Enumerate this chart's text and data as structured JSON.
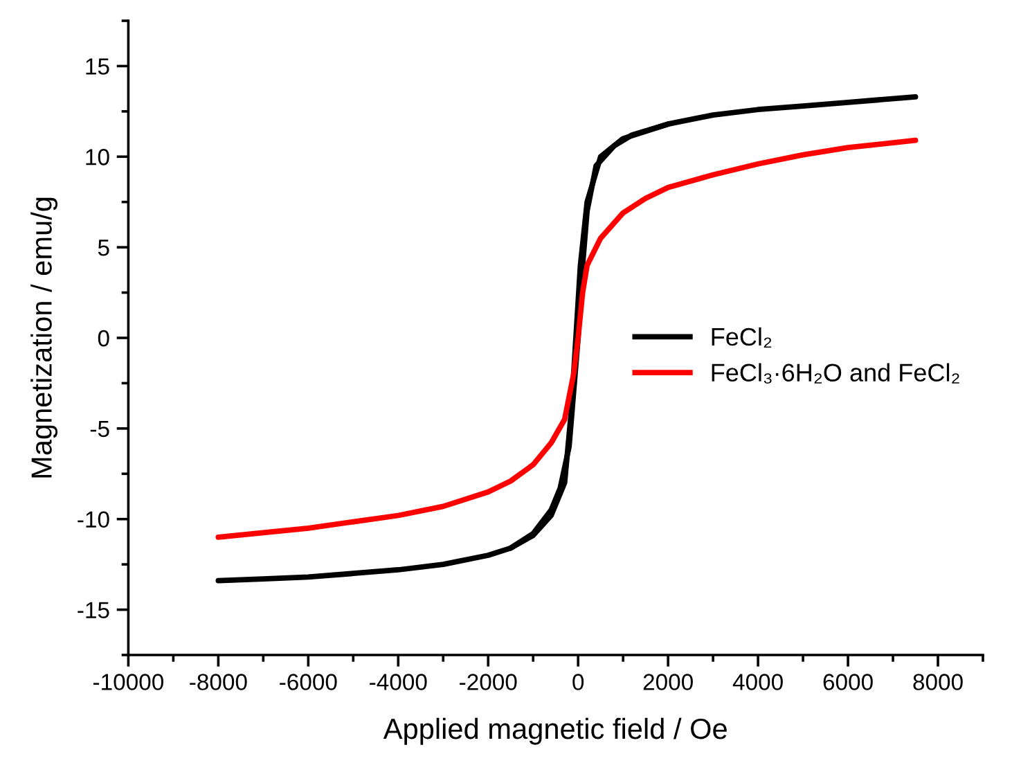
{
  "chart_data": {
    "type": "line",
    "xlabel": "Applied magnetic field / Oe",
    "ylabel": "Magnetization / emu/g",
    "xlim": [
      -10000,
      9000
    ],
    "xticks": [
      -10000,
      -8000,
      -6000,
      -4000,
      -2000,
      0,
      2000,
      4000,
      6000,
      8000
    ],
    "ylim": [
      -17.5,
      17.5
    ],
    "yticks": [
      -15,
      -10,
      -5,
      0,
      5,
      10,
      15
    ],
    "grid": false,
    "legend": "right",
    "marker": "none",
    "line_style": "solid",
    "series": [
      {
        "name": "FeCl₂",
        "color": "#000000",
        "x": [
          -8000,
          -7000,
          -6000,
          -5000,
          -4000,
          -3000,
          -2000,
          -1500,
          -1000,
          -600,
          -400,
          -200,
          -100,
          0,
          100,
          200,
          400,
          800,
          1200,
          2000,
          3000,
          4000,
          5000,
          6000,
          7500
        ],
        "values": [
          -13.4,
          -13.3,
          -13.2,
          -13.0,
          -12.8,
          -12.5,
          -12.0,
          -11.6,
          -10.8,
          -9.5,
          -8.3,
          -6.0,
          -3.0,
          0.0,
          4.0,
          7.0,
          9.5,
          10.6,
          11.2,
          11.8,
          12.3,
          12.6,
          12.8,
          13.0,
          13.3
        ]
      },
      {
        "color": "#000000",
        "x": [
          -1500,
          -1000,
          -600,
          -300,
          -150,
          -50,
          50,
          200,
          500,
          1000,
          2000
        ],
        "values": [
          -11.6,
          -10.9,
          -9.8,
          -8.0,
          -4.0,
          0.0,
          4.0,
          7.5,
          10.0,
          11.0,
          11.8
        ]
      },
      {
        "name": "FeCl₃·6H₂O and FeCl₂",
        "color": "#ff0000",
        "x": [
          -8000,
          -6000,
          -4000,
          -3000,
          -2000,
          -1500,
          -1000,
          -600,
          -300,
          -100,
          0,
          100,
          200,
          500,
          1000,
          1500,
          2000,
          3000,
          4000,
          5000,
          6000,
          7500
        ],
        "values": [
          -11.0,
          -10.5,
          -9.8,
          -9.3,
          -8.5,
          -7.9,
          -7.0,
          -5.8,
          -4.5,
          -2.0,
          0.0,
          2.5,
          4.0,
          5.5,
          6.9,
          7.7,
          8.3,
          9.0,
          9.6,
          10.1,
          10.5,
          10.9
        ]
      }
    ]
  }
}
